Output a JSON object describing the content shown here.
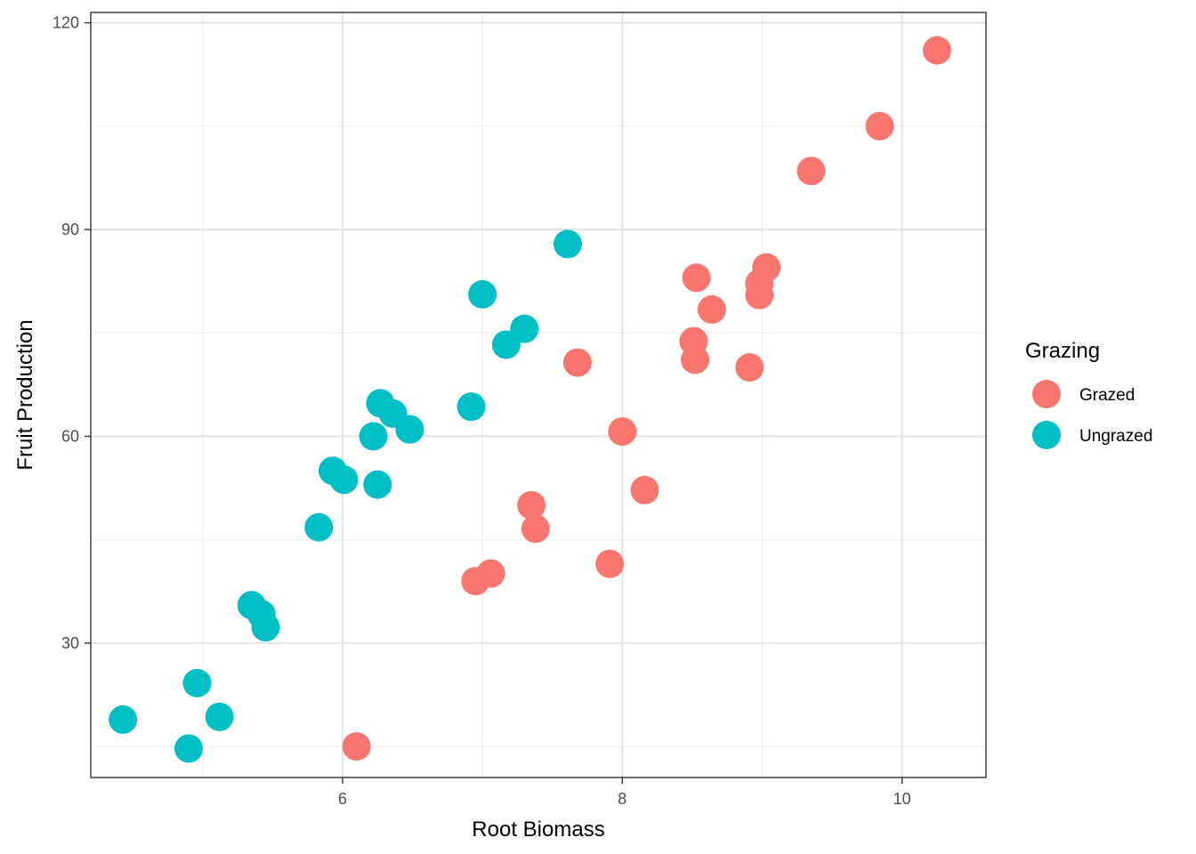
{
  "chart_data": {
    "type": "scatter",
    "title": "",
    "xlabel": "Root Biomass",
    "ylabel": "Fruit Production",
    "xlim": [
      4.2,
      10.6
    ],
    "ylim": [
      10.5,
      121.5
    ],
    "x_ticks": [
      6,
      8,
      10
    ],
    "x_tick_labels": [
      "6",
      "8",
      "10"
    ],
    "y_ticks": [
      30,
      60,
      90,
      120
    ],
    "y_tick_labels": [
      "30",
      "60",
      "90",
      "120"
    ],
    "grid": true,
    "legend": {
      "title": "Grazing",
      "position": "right"
    },
    "series": [
      {
        "name": "Grazed",
        "color": "#F8766D",
        "points": [
          [
            6.1,
            15.0
          ],
          [
            6.95,
            39.0
          ],
          [
            7.06,
            40.1
          ],
          [
            7.35,
            50.0
          ],
          [
            7.38,
            46.6
          ],
          [
            7.68,
            70.7
          ],
          [
            7.91,
            41.5
          ],
          [
            8.0,
            60.7
          ],
          [
            8.16,
            52.2
          ],
          [
            8.51,
            73.8
          ],
          [
            8.52,
            71.1
          ],
          [
            8.53,
            83.0
          ],
          [
            8.64,
            78.4
          ],
          [
            8.91,
            70.0
          ],
          [
            8.98,
            80.5
          ],
          [
            8.98,
            82.2
          ],
          [
            9.03,
            84.5
          ],
          [
            9.35,
            98.5
          ],
          [
            9.84,
            105.0
          ],
          [
            10.25,
            116.0
          ]
        ]
      },
      {
        "name": "Ungrazed",
        "color": "#00BFC4",
        "points": [
          [
            4.43,
            18.9
          ],
          [
            4.9,
            14.7
          ],
          [
            4.96,
            24.2
          ],
          [
            5.12,
            19.3
          ],
          [
            5.35,
            35.5
          ],
          [
            5.42,
            34.2
          ],
          [
            5.45,
            32.3
          ],
          [
            5.83,
            46.8
          ],
          [
            5.93,
            55.0
          ],
          [
            6.01,
            53.7
          ],
          [
            6.22,
            60.0
          ],
          [
            6.25,
            53.0
          ],
          [
            6.27,
            64.8
          ],
          [
            6.36,
            63.3
          ],
          [
            6.48,
            61.0
          ],
          [
            6.92,
            64.3
          ],
          [
            7.0,
            80.6
          ],
          [
            7.17,
            73.3
          ],
          [
            7.3,
            75.6
          ],
          [
            7.61,
            87.9
          ]
        ]
      }
    ]
  }
}
